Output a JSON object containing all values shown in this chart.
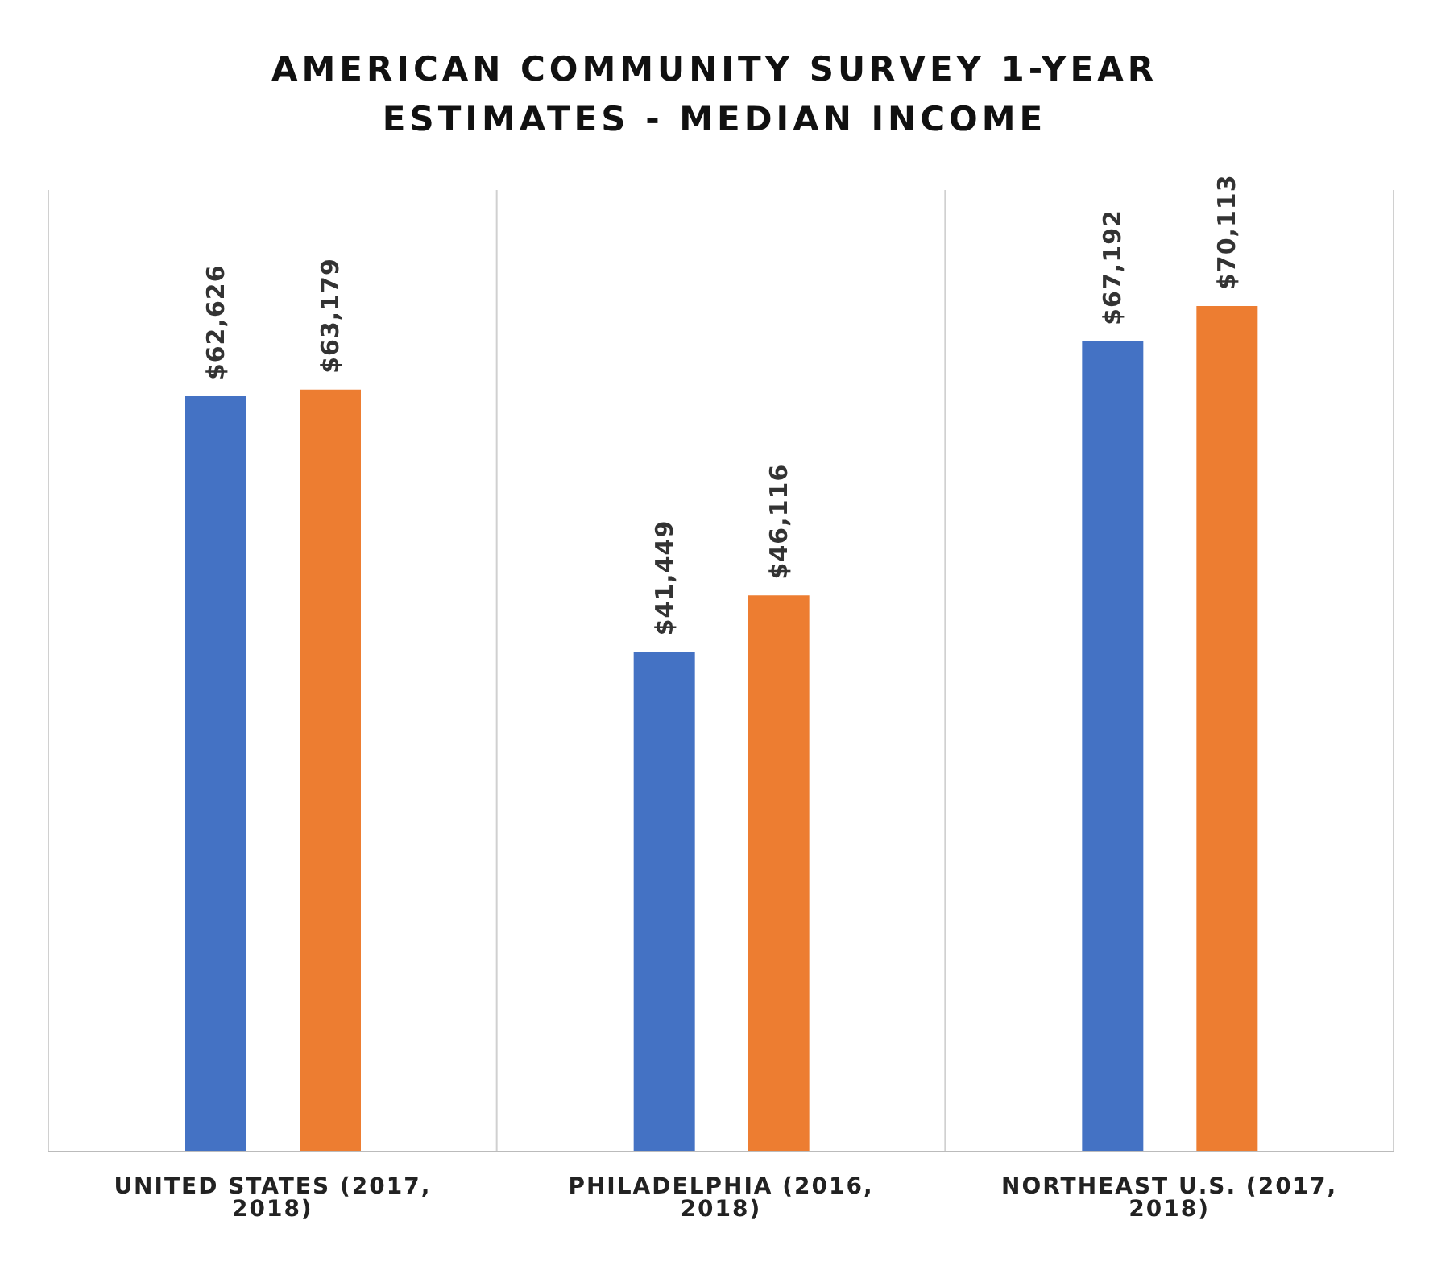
{
  "chart_data": {
    "type": "bar",
    "title": "AMERICAN COMMUNITY SURVEY 1-YEAR ESTIMATES - MEDIAN INCOME",
    "categories": [
      "UNITED STATES (2017, 2018)",
      "PHILADELPHIA (2016, 2018)",
      "NORTHEAST U.S. (2017, 2018)"
    ],
    "series": [
      {
        "color": "#4472c4",
        "values": [
          62626,
          41449,
          67192
        ],
        "value_labels": [
          "$62,626",
          "$41,449",
          "$67,192"
        ]
      },
      {
        "color": "#ed7d31",
        "values": [
          63179,
          46116,
          70113
        ],
        "value_labels": [
          "$63,179",
          "$46,116",
          "$70,113"
        ]
      }
    ],
    "grid": "x"
  }
}
